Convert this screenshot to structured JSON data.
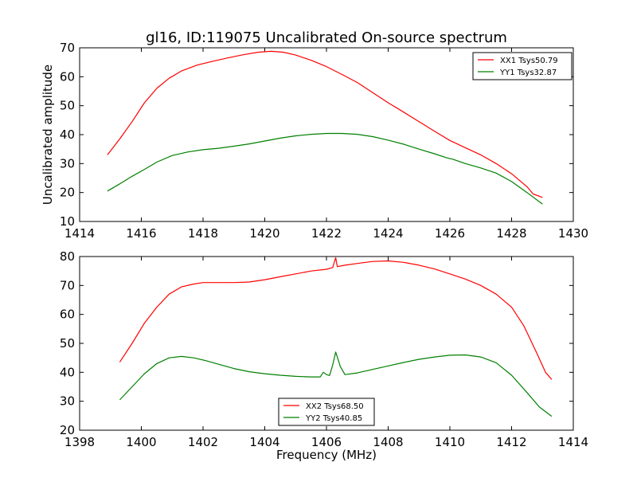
{
  "title": "gl16, ID:119075 Uncalibrated On-source spectrum",
  "chart_data": [
    {
      "type": "line",
      "ylabel": "Uncalibrated amplitude",
      "xlabel": "",
      "xlim": [
        1414,
        1430
      ],
      "ylim": [
        10,
        70
      ],
      "xticks": [
        "1414",
        "1416",
        "1418",
        "1420",
        "1422",
        "1424",
        "1426",
        "1428",
        "1430"
      ],
      "yticks": [
        "10",
        "20",
        "30",
        "40",
        "50",
        "60",
        "70"
      ],
      "legend_position": "upper-right",
      "series": [
        {
          "name": "XX1 Tsys50.79",
          "color": "#ff0000",
          "points": [
            [
              1414.9,
              33
            ],
            [
              1415.3,
              38.5
            ],
            [
              1415.7,
              44.5
            ],
            [
              1416.1,
              51
            ],
            [
              1416.5,
              56
            ],
            [
              1416.9,
              59.5
            ],
            [
              1417.3,
              62
            ],
            [
              1417.8,
              64
            ],
            [
              1418.3,
              65.3
            ],
            [
              1418.8,
              66.5
            ],
            [
              1419.3,
              67.6
            ],
            [
              1419.8,
              68.5
            ],
            [
              1420.2,
              68.8
            ],
            [
              1420.6,
              68.5
            ],
            [
              1421.0,
              67.5
            ],
            [
              1421.5,
              65.7
            ],
            [
              1422.0,
              63.5
            ],
            [
              1422.5,
              60.8
            ],
            [
              1423.0,
              58
            ],
            [
              1423.5,
              54.5
            ],
            [
              1424.0,
              51
            ],
            [
              1424.5,
              47.8
            ],
            [
              1425.0,
              44.5
            ],
            [
              1425.5,
              41.2
            ],
            [
              1426.0,
              38
            ],
            [
              1426.5,
              35.5
            ],
            [
              1427.0,
              33
            ],
            [
              1427.5,
              30
            ],
            [
              1428.0,
              26.5
            ],
            [
              1428.5,
              22
            ],
            [
              1428.7,
              19.5
            ],
            [
              1429.0,
              18.3
            ]
          ]
        },
        {
          "name": "YY1 Tsys32.87",
          "color": "#008000",
          "points": [
            [
              1414.9,
              20.5
            ],
            [
              1415.3,
              23
            ],
            [
              1415.7,
              25.6
            ],
            [
              1416.1,
              28
            ],
            [
              1416.5,
              30.5
            ],
            [
              1417.0,
              32.8
            ],
            [
              1417.5,
              34
            ],
            [
              1418.0,
              34.8
            ],
            [
              1418.5,
              35.3
            ],
            [
              1419.0,
              36
            ],
            [
              1419.5,
              36.8
            ],
            [
              1420.0,
              37.8
            ],
            [
              1420.5,
              38.8
            ],
            [
              1421.0,
              39.6
            ],
            [
              1421.5,
              40.1
            ],
            [
              1422.0,
              40.4
            ],
            [
              1422.5,
              40.4
            ],
            [
              1423.0,
              40.1
            ],
            [
              1423.5,
              39.3
            ],
            [
              1424.0,
              38.1
            ],
            [
              1424.5,
              36.7
            ],
            [
              1425.0,
              35
            ],
            [
              1425.5,
              33.4
            ],
            [
              1425.9,
              32
            ],
            [
              1426.1,
              31.5
            ],
            [
              1426.5,
              30
            ],
            [
              1427.0,
              28.5
            ],
            [
              1427.5,
              26.7
            ],
            [
              1428.0,
              23.8
            ],
            [
              1428.5,
              20
            ],
            [
              1429.0,
              16
            ]
          ]
        }
      ]
    },
    {
      "type": "line",
      "xlabel": "Frequency (MHz)",
      "ylabel": "",
      "xlim": [
        1398,
        1414
      ],
      "ylim": [
        20,
        80
      ],
      "xticks": [
        "1398",
        "1400",
        "1402",
        "1404",
        "1406",
        "1408",
        "1410",
        "1412",
        "1414"
      ],
      "yticks": [
        "20",
        "30",
        "40",
        "50",
        "60",
        "70",
        "80"
      ],
      "legend_position": "lower-center",
      "series": [
        {
          "name": "XX2 Tsys68.50",
          "color": "#ff0000",
          "points": [
            [
              1399.3,
              43.5
            ],
            [
              1399.7,
              50
            ],
            [
              1400.1,
              57
            ],
            [
              1400.5,
              62.5
            ],
            [
              1400.9,
              67
            ],
            [
              1401.3,
              69.5
            ],
            [
              1401.7,
              70.5
            ],
            [
              1402.0,
              71
            ],
            [
              1402.5,
              71
            ],
            [
              1403.0,
              71
            ],
            [
              1403.5,
              71.2
            ],
            [
              1404.0,
              72
            ],
            [
              1404.5,
              73
            ],
            [
              1405.0,
              74
            ],
            [
              1405.5,
              75
            ],
            [
              1406.0,
              75.6
            ],
            [
              1406.2,
              76.2
            ],
            [
              1406.3,
              79.6
            ],
            [
              1406.35,
              76.5
            ],
            [
              1406.6,
              77
            ],
            [
              1407.0,
              77.6
            ],
            [
              1407.5,
              78.3
            ],
            [
              1408.0,
              78.5
            ],
            [
              1408.5,
              78
            ],
            [
              1409.0,
              77
            ],
            [
              1409.5,
              75.7
            ],
            [
              1410.0,
              74
            ],
            [
              1410.5,
              72.2
            ],
            [
              1411.0,
              70
            ],
            [
              1411.5,
              67
            ],
            [
              1412.0,
              62.5
            ],
            [
              1412.4,
              56
            ],
            [
              1412.8,
              47
            ],
            [
              1413.1,
              40
            ],
            [
              1413.3,
              37.5
            ]
          ]
        },
        {
          "name": "YY2 Tsys40.85",
          "color": "#008000",
          "points": [
            [
              1399.3,
              30.5
            ],
            [
              1399.7,
              35
            ],
            [
              1400.1,
              39.5
            ],
            [
              1400.5,
              43
            ],
            [
              1400.9,
              45
            ],
            [
              1401.3,
              45.5
            ],
            [
              1401.7,
              45
            ],
            [
              1402.1,
              44
            ],
            [
              1402.5,
              42.8
            ],
            [
              1403.0,
              41.3
            ],
            [
              1403.5,
              40.2
            ],
            [
              1404.0,
              39.5
            ],
            [
              1404.5,
              39
            ],
            [
              1405.0,
              38.6
            ],
            [
              1405.5,
              38.4
            ],
            [
              1405.8,
              38.4
            ],
            [
              1405.9,
              40
            ],
            [
              1406.0,
              39.2
            ],
            [
              1406.1,
              38.9
            ],
            [
              1406.2,
              42.5
            ],
            [
              1406.3,
              47
            ],
            [
              1406.45,
              42
            ],
            [
              1406.6,
              39.2
            ],
            [
              1407.0,
              39.8
            ],
            [
              1407.5,
              41
            ],
            [
              1408.0,
              42.2
            ],
            [
              1408.5,
              43.4
            ],
            [
              1409.0,
              44.5
            ],
            [
              1409.5,
              45.3
            ],
            [
              1410.0,
              45.9
            ],
            [
              1410.5,
              46
            ],
            [
              1411.0,
              45.3
            ],
            [
              1411.5,
              43.3
            ],
            [
              1412.0,
              39
            ],
            [
              1412.5,
              33
            ],
            [
              1412.9,
              28
            ],
            [
              1413.3,
              24.8
            ]
          ]
        }
      ]
    }
  ]
}
